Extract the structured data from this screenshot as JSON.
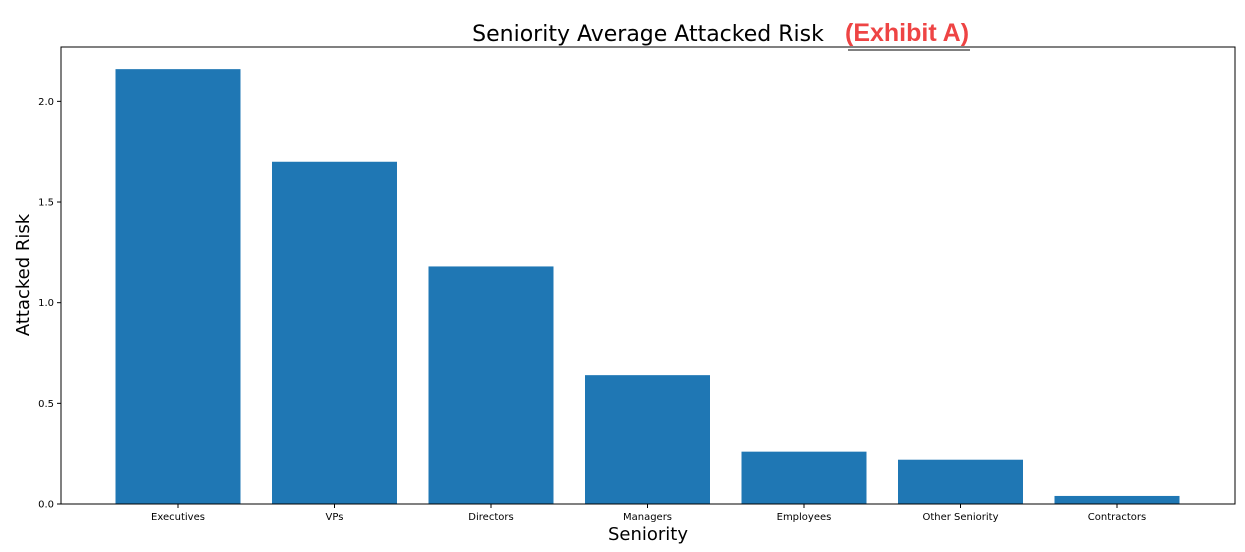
{
  "chart_data": {
    "type": "bar",
    "title": "Seniority Average Attacked Risk",
    "annotation": "(Exhibit A)",
    "xlabel": "Seniority",
    "ylabel": "Attacked Risk",
    "categories": [
      "Executives",
      "VPs",
      "Directors",
      "Managers",
      "Employees",
      "Other Seniority",
      "Contractors"
    ],
    "values": [
      2.16,
      1.7,
      1.18,
      0.64,
      0.26,
      0.22,
      0.04
    ],
    "ylim": [
      0,
      2.27
    ],
    "yticks": [
      "0.0",
      "0.5",
      "1.0",
      "1.5",
      "2.0"
    ],
    "ytick_values": [
      0,
      0.5,
      1.0,
      1.5,
      2.0
    ],
    "grid": false,
    "legend": "none"
  },
  "colors": {
    "bar": "#1f77b4",
    "annotation": "#ee4444",
    "axis": "#000000"
  }
}
